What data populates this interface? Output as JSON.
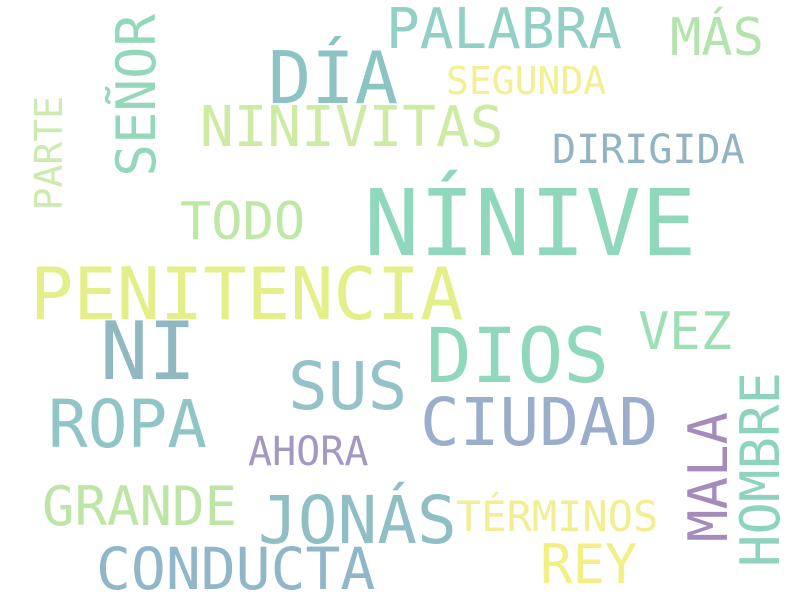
{
  "words": [
    {
      "text": "NÍNIVE",
      "color": "#8fd8bc"
    },
    {
      "text": "PENITENCIA",
      "color": "#e4ef8a"
    },
    {
      "text": "DIOS",
      "color": "#8fd8bc"
    },
    {
      "text": "NI",
      "color": "#8fb8c2"
    },
    {
      "text": "DÍA",
      "color": "#8cc4c4"
    },
    {
      "text": "JONÁS",
      "color": "#8fbfc5"
    },
    {
      "text": "CIUDAD",
      "color": "#9aaecb"
    },
    {
      "text": "SUS",
      "color": "#94c2c8"
    },
    {
      "text": "ROPA",
      "color": "#90c5c7"
    },
    {
      "text": "PALABRA",
      "color": "#92cfc4"
    },
    {
      "text": "SEÑOR",
      "color": "#94d7b9"
    },
    {
      "text": "NINIVITAS",
      "color": "#cdeba2"
    },
    {
      "text": "CONDUCTA",
      "color": "#90b6c9"
    },
    {
      "text": "MALA",
      "color": "#a48bbb"
    },
    {
      "text": "HOMBRE",
      "color": "#8ed2c0"
    },
    {
      "text": "GRANDE",
      "color": "#bde6a6"
    },
    {
      "text": "REY",
      "color": "#f2ef86"
    },
    {
      "text": "TODO",
      "color": "#bde8a5"
    },
    {
      "text": "VEZ",
      "color": "#9ddfb5"
    },
    {
      "text": "MÁS",
      "color": "#b4e4ae"
    },
    {
      "text": "TÉRMINOS",
      "color": "#f1ef92"
    },
    {
      "text": "SEGUNDA",
      "color": "#f3ef93"
    },
    {
      "text": "DIRIGIDA",
      "color": "#93b3c4"
    },
    {
      "text": "AHORA",
      "color": "#a497c2"
    },
    {
      "text": "PARTE",
      "color": "#cdeab1"
    }
  ]
}
